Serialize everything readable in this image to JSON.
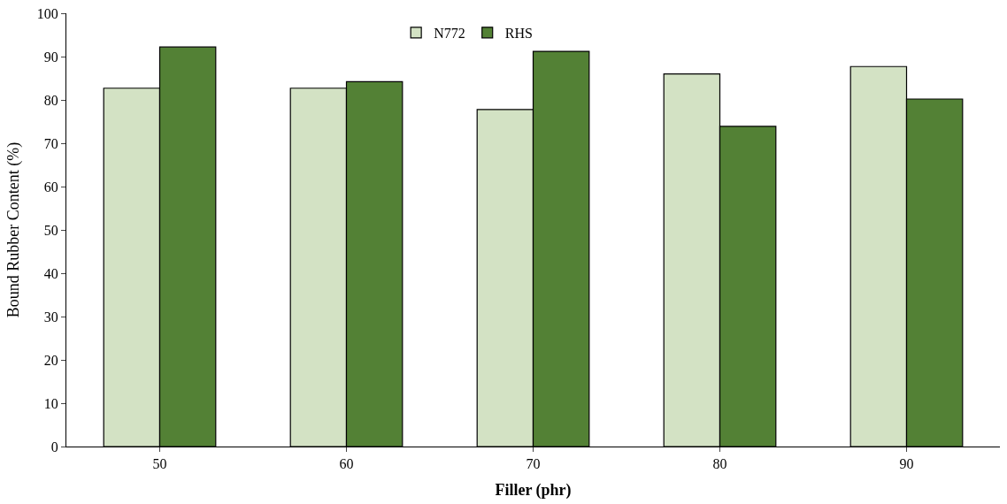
{
  "chart_data": {
    "type": "bar",
    "xlabel": "Filler (phr)",
    "ylabel": "Bound Rubber Content (%)",
    "categories": [
      "50",
      "60",
      "70",
      "80",
      "90"
    ],
    "series": [
      {
        "name": "N772",
        "color": "#d3e2c4",
        "values": [
          82.7,
          82.7,
          77.8,
          86.0,
          87.7
        ]
      },
      {
        "name": "RHS",
        "color": "#538135",
        "values": [
          92.2,
          84.2,
          91.2,
          73.9,
          80.2
        ]
      }
    ],
    "ylim": [
      0,
      100
    ],
    "yticks": [
      0,
      10,
      20,
      30,
      40,
      50,
      60,
      70,
      80,
      90,
      100
    ],
    "grid": false,
    "legend": "top"
  }
}
